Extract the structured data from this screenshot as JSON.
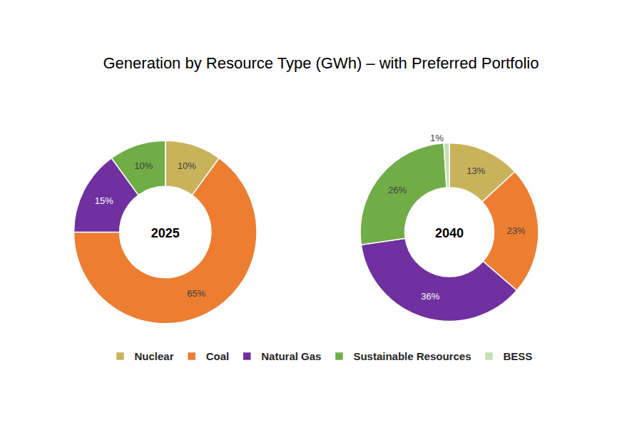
{
  "chart_data": {
    "type": "pie",
    "title": "Generation by Resource Type (GWh) – with Preferred Portfolio",
    "categories": [
      "Nuclear",
      "Coal",
      "Natural Gas",
      "Sustainable Resources",
      "BESS"
    ],
    "colors": [
      "#c9b35a",
      "#ed7d31",
      "#7030a0",
      "#70ad47",
      "#c5e0b4"
    ],
    "series": [
      {
        "name": "2025",
        "values": [
          10,
          65,
          15,
          10,
          0
        ],
        "value_labels": [
          "10%",
          "65%",
          "15%",
          "10%",
          null
        ]
      },
      {
        "name": "2040",
        "values": [
          13,
          23,
          36,
          26,
          1
        ],
        "value_labels": [
          "13%",
          "23%",
          "36%",
          "26%",
          "1%"
        ]
      }
    ],
    "data_labels": true,
    "legend": "bottom"
  }
}
